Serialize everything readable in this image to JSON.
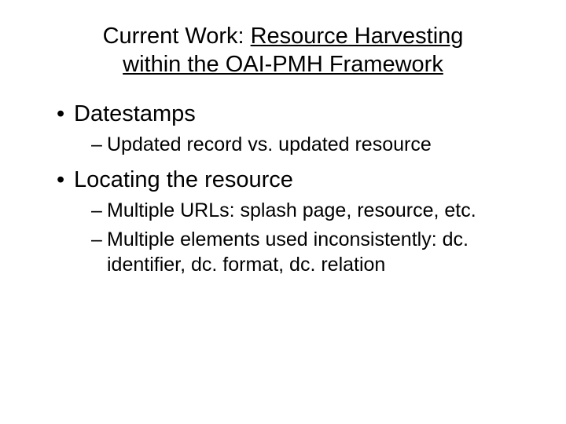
{
  "title_prefix": "Current Work: ",
  "title_link_line1": "Resource Harvesting",
  "title_link_line2": "within the OAI-PMH Framework",
  "bullets": [
    {
      "text": "Datestamps",
      "sub": [
        "Updated record vs. updated resource"
      ]
    },
    {
      "text": "Locating the resource",
      "sub": [
        "Multiple URLs: splash page, resource, etc.",
        "Multiple elements used inconsistently: dc. identifier, dc. format, dc. relation"
      ]
    }
  ],
  "colors": {
    "text": "#000000",
    "background": "#ffffff"
  },
  "typography": {
    "font_family": "Verdana",
    "title_fontsize_pt": 22,
    "level1_fontsize_pt": 22,
    "level2_fontsize_pt": 19
  }
}
